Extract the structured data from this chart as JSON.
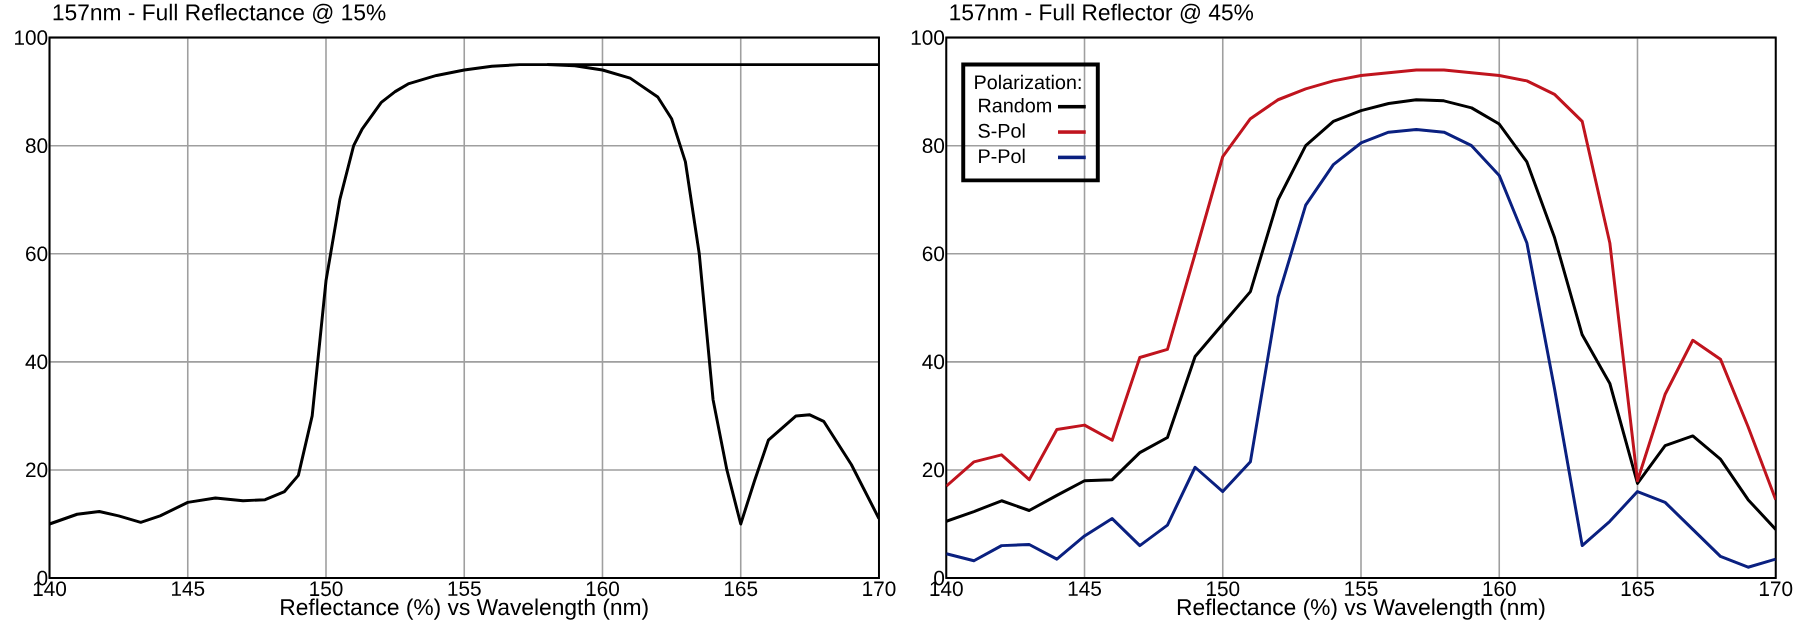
{
  "chart_data": [
    {
      "type": "line",
      "title": "157nm - Full Reflectance @ 15%",
      "xlabel": "Reflectance (%) vs Wavelength (nm)",
      "xlim": [
        140,
        170
      ],
      "ylim": [
        0,
        100
      ],
      "xticks": [
        140,
        145,
        150,
        155,
        160,
        165,
        170
      ],
      "yticks": [
        0,
        20,
        40,
        60,
        80,
        100
      ],
      "grid": true,
      "marker": "none",
      "series": [
        {
          "color": "#000000",
          "x": [
            140,
            141,
            141.8,
            142.5,
            143.3,
            144,
            145,
            146,
            147,
            147.8,
            148.5,
            149,
            149.5,
            150,
            150.5,
            151,
            151.3,
            152,
            152.5,
            153,
            154,
            155,
            156,
            157,
            158,
            159,
            160,
            161,
            162,
            162.5,
            163,
            163.5,
            164,
            164.5,
            165,
            165.5,
            166,
            167,
            167.5,
            168,
            169,
            170
          ],
          "values": [
            10,
            11.8,
            12.3,
            11.5,
            10.3,
            11.5,
            14,
            14.8,
            14.3,
            14.5,
            16,
            19,
            30,
            55,
            70,
            80,
            83,
            88,
            90,
            91.5,
            93,
            94,
            94.7,
            95,
            95,
            94.8,
            94,
            92.5,
            89,
            85,
            77,
            60,
            33,
            20,
            10,
            18,
            25.5,
            30,
            30.2,
            29,
            21,
            11
          ]
        },
        {
          "color": "#000000",
          "x": [
            158,
            170
          ],
          "values": [
            95,
            95
          ]
        }
      ]
    },
    {
      "type": "line",
      "title": "157nm - Full Reflector @ 45%",
      "xlabel": "Reflectance (%) vs Wavelength (nm)",
      "xlim": [
        140,
        170
      ],
      "ylim": [
        0,
        100
      ],
      "xticks": [
        140,
        145,
        150,
        155,
        160,
        165,
        170
      ],
      "yticks": [
        0,
        20,
        40,
        60,
        80,
        100
      ],
      "grid": true,
      "marker": "none",
      "legend": "top left",
      "legend_title": "Polarization:",
      "x": [
        140,
        141,
        142,
        143,
        144,
        145,
        146,
        147,
        148,
        149,
        150,
        151,
        152,
        153,
        154,
        155,
        156,
        157,
        158,
        159,
        160,
        161,
        162,
        163,
        164,
        165,
        166,
        167,
        168,
        169,
        170
      ],
      "series": [
        {
          "name": "Random",
          "color": "#000000",
          "values": [
            10.5,
            12.3,
            14.3,
            12.5,
            15.3,
            18,
            18.2,
            23.2,
            26,
            41,
            47,
            53,
            70,
            80,
            84.5,
            86.5,
            87.8,
            88.5,
            88.3,
            87,
            84,
            77,
            63,
            45,
            36,
            17.5,
            24.5,
            26.3,
            22,
            14.5,
            9
          ]
        },
        {
          "name": "S-Pol",
          "color": "#c0141e",
          "values": [
            17,
            21.5,
            22.8,
            18.2,
            27.5,
            28.3,
            25.5,
            40.8,
            42.3,
            60,
            78,
            85,
            88.5,
            90.5,
            92,
            93,
            93.5,
            94,
            94,
            93.5,
            93,
            92,
            89.5,
            84.5,
            62,
            18,
            34,
            44,
            40.5,
            28,
            14.5
          ]
        },
        {
          "name": "P-Pol",
          "color": "#0a2080",
          "values": [
            4.5,
            3.2,
            6,
            6.2,
            3.5,
            7.8,
            11,
            6,
            9.8,
            20.5,
            16,
            21.5,
            52,
            69,
            76.5,
            80.5,
            82.5,
            83,
            82.5,
            80,
            74.5,
            62,
            35,
            6,
            10.5,
            16,
            14,
            9,
            4,
            2,
            3.5
          ]
        }
      ]
    }
  ]
}
